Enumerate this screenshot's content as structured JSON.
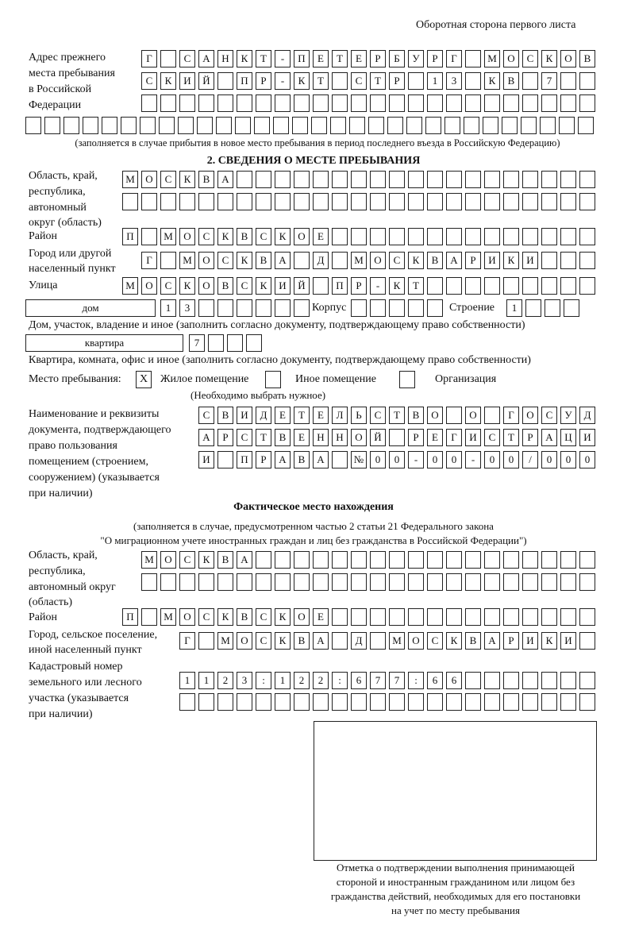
{
  "header": "Оборотная сторона первого листа",
  "prev": {
    "label": [
      "Адрес прежнего",
      "места пребывания",
      "в Российской",
      "Федерации"
    ],
    "rows": [
      [
        "Г",
        "",
        "С",
        "А",
        "Н",
        "К",
        "Т",
        "-",
        "П",
        "Е",
        "Т",
        "Е",
        "Р",
        "Б",
        "У",
        "Р",
        "Г",
        "",
        "М",
        "О",
        "С",
        "К",
        "О",
        "В"
      ],
      [
        "С",
        "К",
        "И",
        "Й",
        "",
        "П",
        "Р",
        "-",
        "К",
        "Т",
        "",
        "С",
        "Т",
        "Р",
        "",
        "1",
        "3",
        "",
        "К",
        "В",
        "",
        "7",
        "",
        ""
      ],
      [
        "",
        "",
        "",
        "",
        "",
        "",
        "",
        "",
        "",
        "",
        "",
        "",
        "",
        "",
        "",
        "",
        "",
        "",
        "",
        "",
        "",
        "",
        "",
        ""
      ],
      [
        "",
        "",
        "",
        "",
        "",
        "",
        "",
        "",
        "",
        "",
        "",
        "",
        "",
        "",
        "",
        "",
        "",
        "",
        "",
        "",
        "",
        "",
        "",
        "",
        "",
        "",
        "",
        "",
        "",
        ""
      ]
    ],
    "note": "(заполняется в случае прибытия в новое место пребывания в период последнего въезда в Российскую Федерацию)"
  },
  "section2": {
    "title": "2. СВЕДЕНИЯ О МЕСТЕ ПРЕБЫВАНИЯ",
    "region_label": [
      "Область, край,",
      "республика,",
      "автономный",
      "округ (область)"
    ],
    "region": [
      [
        "М",
        "О",
        "С",
        "К",
        "В",
        "А",
        "",
        "",
        "",
        "",
        "",
        "",
        "",
        "",
        "",
        "",
        "",
        "",
        "",
        "",
        "",
        "",
        "",
        "",
        ""
      ],
      [
        "",
        "",
        "",
        "",
        "",
        "",
        "",
        "",
        "",
        "",
        "",
        "",
        "",
        "",
        "",
        "",
        "",
        "",
        "",
        "",
        "",
        "",
        "",
        "",
        ""
      ]
    ],
    "district_label": "Район",
    "district": [
      "П",
      "",
      "М",
      "О",
      "С",
      "К",
      "В",
      "С",
      "К",
      "О",
      "Е",
      "",
      "",
      "",
      "",
      "",
      "",
      "",
      "",
      "",
      "",
      "",
      "",
      "",
      ""
    ],
    "city_label": [
      "Город или другой",
      "населенный пункт"
    ],
    "city": [
      "Г",
      "",
      "М",
      "О",
      "С",
      "К",
      "В",
      "А",
      "",
      "Д",
      "",
      "М",
      "О",
      "С",
      "К",
      "В",
      "А",
      "Р",
      "И",
      "К",
      "И",
      "",
      "",
      ""
    ],
    "street_label": "Улица",
    "street": [
      "М",
      "О",
      "С",
      "К",
      "О",
      "В",
      "С",
      "К",
      "И",
      "Й",
      "",
      "П",
      "Р",
      "-",
      "К",
      "Т",
      "",
      "",
      "",
      "",
      "",
      "",
      "",
      "",
      ""
    ],
    "house_type": "дом",
    "house": [
      "1",
      "3",
      "",
      "",
      "",
      "",
      "",
      ""
    ],
    "korpus_label": "Корпус",
    "korpus": [
      "",
      "",
      "",
      "",
      ""
    ],
    "building_label": "Строение",
    "building": [
      "1",
      "",
      "",
      ""
    ],
    "house_note": "Дом, участок, владение и иное (заполнить согласно документу, подтверждающему право собственности)",
    "flat_type": "квартира",
    "flat": [
      "7",
      "",
      "",
      ""
    ],
    "flat_note": "Квартира, комната, офис и иное (заполнить согласно документу, подтверждающему право собственности)",
    "stay_label": "Место пребывания:",
    "opt1": {
      "mark": "Х",
      "label": "Жилое помещение"
    },
    "opt2": {
      "mark": "",
      "label": "Иное помещение"
    },
    "opt3": {
      "mark": "",
      "label": "Организация"
    },
    "choose_note": "(Необходимо выбрать нужное)",
    "doc_label": [
      "Наименование и реквизиты",
      "документа, подтверждающего",
      "право пользования",
      "помещением (строением,",
      "сооружением) (указывается",
      "при наличии)"
    ],
    "doc": [
      [
        "С",
        "В",
        "И",
        "Д",
        "Е",
        "Т",
        "Е",
        "Л",
        "Ь",
        "С",
        "Т",
        "В",
        "О",
        "",
        "О",
        "",
        "Г",
        "О",
        "С",
        "У",
        "Д"
      ],
      [
        "А",
        "Р",
        "С",
        "Т",
        "В",
        "Е",
        "Н",
        "Н",
        "О",
        "Й",
        "",
        "Р",
        "Е",
        "Г",
        "И",
        "С",
        "Т",
        "Р",
        "А",
        "Ц",
        "И"
      ],
      [
        "И",
        "",
        "П",
        "Р",
        "А",
        "В",
        "А",
        "",
        "№",
        "0",
        "0",
        "-",
        "0",
        "0",
        "-",
        "0",
        "0",
        "/",
        "0",
        "0",
        "0"
      ]
    ]
  },
  "actual": {
    "title": "Фактическое место нахождения",
    "note": [
      "(заполняется в случае, предусмотренном частью 2 статьи 21 Федерального закона",
      "\"О миграционном учете иностранных граждан и лиц без гражданства в Российской Федерации\")"
    ],
    "region_label": [
      "Область, край,",
      "республика,",
      "автономный округ",
      "(область)"
    ],
    "region": [
      [
        "М",
        "О",
        "С",
        "К",
        "В",
        "А",
        "",
        "",
        "",
        "",
        "",
        "",
        "",
        "",
        "",
        "",
        "",
        "",
        "",
        "",
        "",
        "",
        "",
        ""
      ],
      [
        "",
        "",
        "",
        "",
        "",
        "",
        "",
        "",
        "",
        "",
        "",
        "",
        "",
        "",
        "",
        "",
        "",
        "",
        "",
        "",
        "",
        "",
        "",
        ""
      ]
    ],
    "district_label": "Район",
    "district": [
      "П",
      "",
      "М",
      "О",
      "С",
      "К",
      "В",
      "С",
      "К",
      "О",
      "Е",
      "",
      "",
      "",
      "",
      "",
      "",
      "",
      "",
      "",
      "",
      "",
      "",
      "",
      ""
    ],
    "city_label": [
      "Город, сельское поселение,",
      "иной населенный пункт"
    ],
    "city": [
      "Г",
      "",
      "М",
      "О",
      "С",
      "К",
      "В",
      "А",
      "",
      "Д",
      "",
      "М",
      "О",
      "С",
      "К",
      "В",
      "А",
      "Р",
      "И",
      "К",
      "И",
      ""
    ],
    "cad_label": [
      "Кадастровый номер",
      "земельного или лесного",
      "участка (указывается",
      "при наличии)"
    ],
    "cad": [
      [
        "1",
        "1",
        "2",
        "3",
        ":",
        "1",
        "2",
        "2",
        ":",
        "6",
        "7",
        "7",
        ":",
        "6",
        "6",
        "",
        "",
        "",
        "",
        "",
        "",
        ""
      ],
      [
        "",
        "",
        "",
        "",
        "",
        "",
        "",
        "",
        "",
        "",
        "",
        "",
        "",
        "",
        "",
        "",
        "",
        "",
        "",
        "",
        "",
        ""
      ]
    ]
  },
  "stamp": {
    "caption": [
      "Отметка о подтверждении выполнения принимающей",
      "стороной и иностранным гражданином или лицом без",
      "гражданства действий, необходимых для его постановки",
      "на учет по месту пребывания"
    ]
  }
}
